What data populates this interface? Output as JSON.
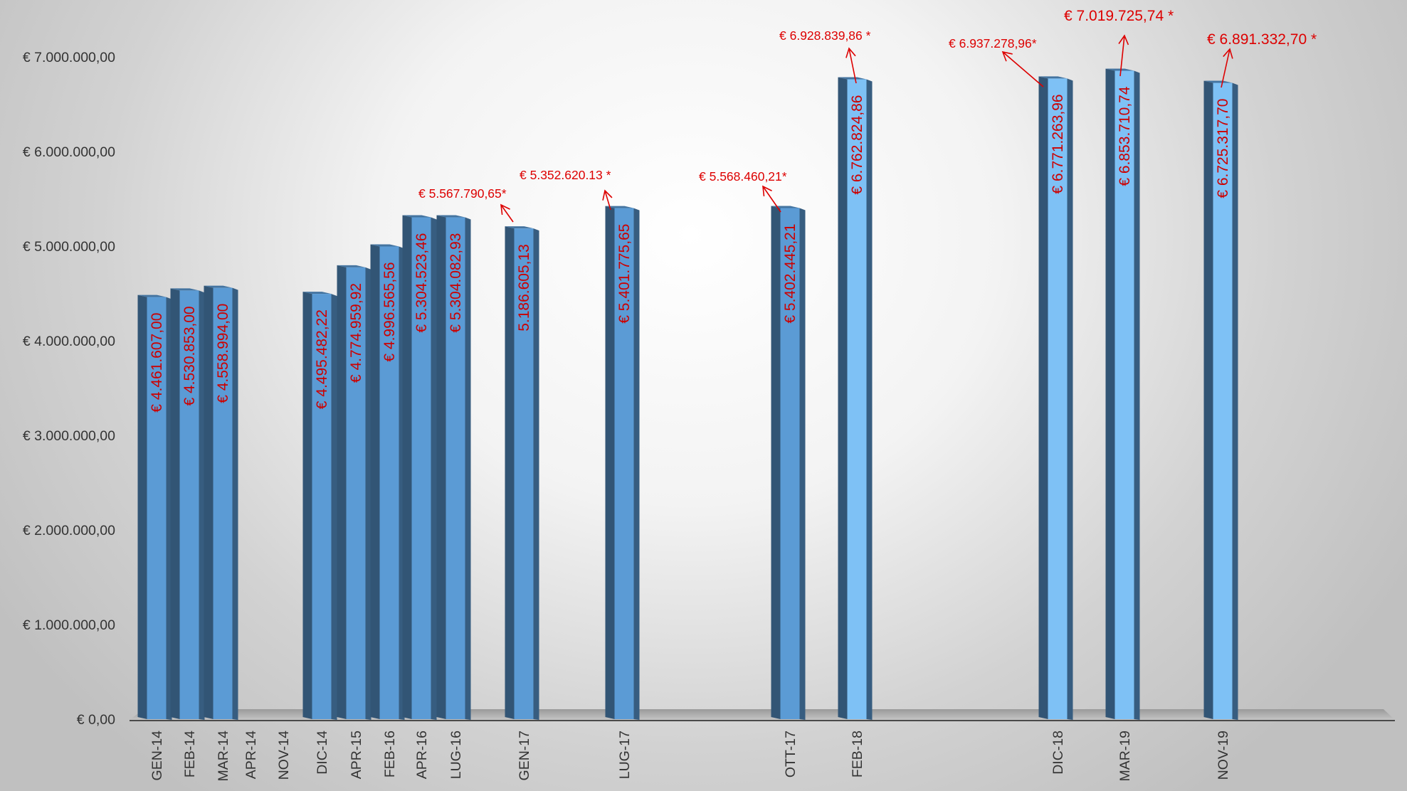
{
  "chart_data": {
    "type": "bar",
    "title": "",
    "xlabel": "",
    "ylabel": "",
    "ylim": [
      0,
      7000000
    ],
    "yticks": [
      "€ 0,00",
      "€ 1.000.000,00",
      "€ 2.000.000,00",
      "€ 3.000.000,00",
      "€ 4.000.000,00",
      "€ 5.000.000,00",
      "€ 6.000.000,00",
      "€ 7.000.000,00"
    ],
    "grid": false,
    "legend": "none",
    "bar_color": "#5b9bd5",
    "bar_color_highlight": "#7ec1f5",
    "annotation_color": "#dd0000",
    "categories": [
      "GEN-14",
      "FEB-14",
      "MAR-14",
      "APR-14",
      "NOV-14",
      "DIC-14",
      "APR-15",
      "FEB-16",
      "APR-16",
      "LUG-16",
      "GEN-17",
      "LUG-17",
      "OTT-17",
      "FEB-18",
      "DIC-18",
      "MAR-19",
      "NOV-19"
    ],
    "values": [
      4461607.0,
      4530853.0,
      4558994.0,
      null,
      null,
      4495482.22,
      4774959.92,
      4996565.56,
      5304523.46,
      5304082.93,
      5186605.13,
      5401775.65,
      5402445.21,
      6762824.86,
      6771263.96,
      6853710.74,
      6725317.7
    ],
    "value_labels": [
      "€ 4.461.607,00",
      "€ 4.530.853,00",
      "€ 4.558.994,00",
      "",
      "",
      "€ 4.495.482,22",
      "€ 4.774.959,92",
      "€ 4.996.565,56",
      "€ 5.304.523,46",
      "€ 5.304.082,93",
      "5.186.605,13",
      "€ 5.401.775,65",
      "€ 5.402.445,21",
      "€ 6.762.824,86",
      "€ 6.771.263,96",
      "€ 6.853.710,74",
      "€ 6.725.317,70"
    ],
    "annotations": [
      {
        "category": "LUG-16",
        "text": "€ 5.567.790,65*"
      },
      {
        "category": "GEN-17",
        "text": "€ 5.352.620.13 *"
      },
      {
        "category": "LUG-17",
        "text": "€ 5.568.460,21*"
      },
      {
        "category": "OTT-17",
        "text": "€ 6.928.839,86 *"
      },
      {
        "category": "FEB-18",
        "text": "€ 6.937.278,96*"
      },
      {
        "category": "DIC-18",
        "text": "€ 7.019.725,74 *"
      },
      {
        "category": "MAR-19",
        "text": "€ 6.891.332,70 *"
      }
    ]
  }
}
